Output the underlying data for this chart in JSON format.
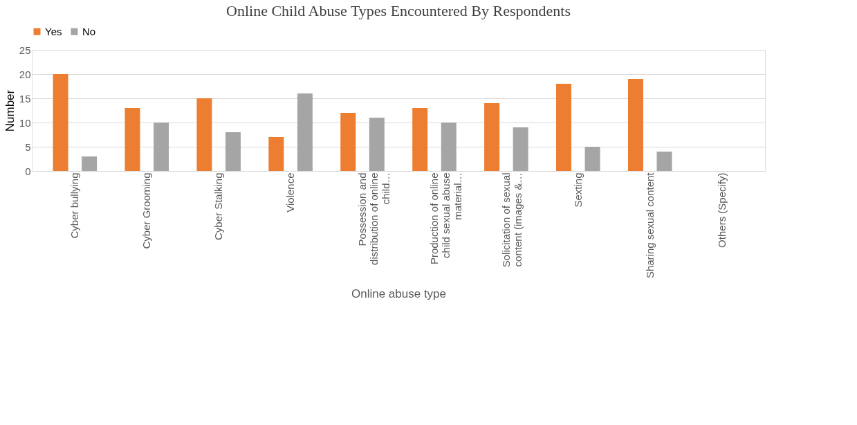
{
  "chart_data": {
    "type": "bar",
    "title": "Online Child Abuse Types Encountered By Respondents",
    "xlabel": "Online abuse type",
    "ylabel": "Number",
    "categories": [
      "Cyber bullying",
      "Cyber Grooming",
      "Cyber Stalking",
      "Violence",
      "Possession and distribution of online child…",
      "Production of online child sexual abuse material…",
      "Solicitation of sexual content (images &…",
      "Sexting",
      "Sharing sexual content",
      "Others (Specify)"
    ],
    "series": [
      {
        "name": "Yes",
        "color": "#ed7d31",
        "values": [
          20,
          13,
          15,
          7,
          12,
          13,
          14,
          18,
          19,
          0
        ]
      },
      {
        "name": "No",
        "color": "#a5a5a5",
        "values": [
          3,
          10,
          8,
          16,
          11,
          10,
          9,
          5,
          4,
          0
        ]
      }
    ],
    "ylim": [
      0,
      25
    ],
    "yticks": [
      0,
      5,
      10,
      15,
      20,
      25
    ],
    "grid": "y",
    "legend": "top"
  }
}
